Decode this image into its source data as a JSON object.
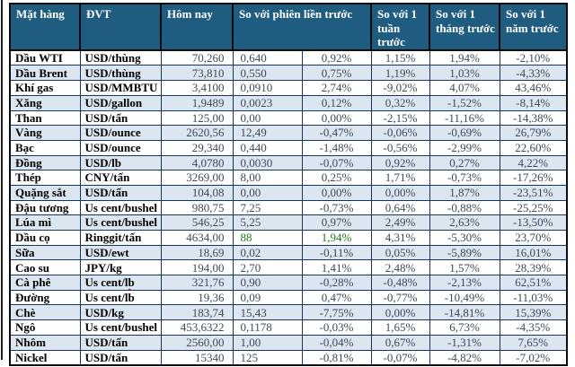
{
  "colors": {
    "header_bg": "#1f5c7f",
    "header_text": "#ffffff",
    "alt_row_bg": "#dce6f1",
    "inner_border": "#17365d",
    "outer_border": "#0c0c0c",
    "label_text": "#000000",
    "number_text": "#3e4a57",
    "positive_green": "#1f7a1f",
    "spellcheck_red": "#e01010"
  },
  "header": {
    "product": "Mặt hàng",
    "unit": "ĐVT",
    "today": "Hôm nay",
    "vs_prev_session": "So với phiên liền trước",
    "vs_week": "So với 1 tuần trước",
    "vs_month": "So với 1 tháng trước",
    "vs_year": "So với 1 năm trước"
  },
  "rows": [
    {
      "name": "Dầu WTI",
      "unit": "USD/thùng",
      "today": "70,260",
      "change": "0,640",
      "change_pct": "0,92%",
      "week": "1,15%",
      "month": "1,94%",
      "year": "-2,10%"
    },
    {
      "name": "Dầu Brent",
      "unit": "USD/thùng",
      "today": "73,810",
      "change": "0,550",
      "change_pct": "0,75%",
      "week": "1,19%",
      "month": "1,03%",
      "year": "-4,33%"
    },
    {
      "name": "Khí gas",
      "unit": "USD/MMBTU",
      "today": "3,4100",
      "change": "0,0910",
      "change_pct": "2,74%",
      "week": "-9,02%",
      "month": "4,07%",
      "year": "43,46%"
    },
    {
      "name": "Xăng",
      "unit": "USD/gallon",
      "today": "1,9489",
      "change": "0,0023",
      "change_pct": "0,12%",
      "week": "0,32%",
      "month": "-1,52%",
      "year": "-8,14%"
    },
    {
      "name": "Than",
      "unit": "USD/tấn",
      "today": "125,00",
      "change": "0,00",
      "change_pct": "0,00%",
      "week": "-2,15%",
      "month": "-11,16%",
      "year": "-14,38%"
    },
    {
      "name": "Vàng",
      "unit": "USD/ounce",
      "today": "2620,56",
      "change": "12,49",
      "change_pct": "-0,47%",
      "week": "-0,06%",
      "month": "-0,69%",
      "year": "26,79%"
    },
    {
      "name": "Bạc",
      "unit": "USD/ounce",
      "today": "29,340",
      "change": "0,440",
      "change_pct": "-1,48%",
      "week": "-0,56%",
      "month": "-2,99%",
      "year": "22,60%"
    },
    {
      "name": "Đồng",
      "unit": "USD/lb",
      "unit_flag": "lb",
      "today": "4,0780",
      "change": "0,0030",
      "change_pct": "-0,07%",
      "week": "0,92%",
      "month": "0,27%",
      "year": "4,22%"
    },
    {
      "name": "Thép",
      "unit": "CNY/tấn",
      "today": "3269,00",
      "change": "8,00",
      "change_pct": "0,25%",
      "week": "1,71%",
      "month": "-0,73%",
      "year": "-17,26%"
    },
    {
      "name": "Quặng sắt",
      "unit": "USD/tấn",
      "today": "104,08",
      "change": "0,00",
      "change_pct": "0,00%",
      "week": "0,00%",
      "month": "1,87%",
      "year": "-23,51%"
    },
    {
      "name": "Đậu tương",
      "unit": "Us cent/bushel",
      "today": "980,75",
      "change": "7,25",
      "change_pct": "-0,73%",
      "week": "0,64%",
      "month": "-0,88%",
      "year": "-25,25%"
    },
    {
      "name": "Lúa mì",
      "unit": "Us cent/bushel",
      "today": "546,25",
      "change": "5,25",
      "change_pct": "0,97%",
      "week": "2,49%",
      "month": "2,63%",
      "year": "-13,50%"
    },
    {
      "name": "Dầu cọ",
      "unit": "Ringgit/tấn",
      "today": "4634,00",
      "change": "88",
      "change_pct": "1,94%",
      "week": "4,31%",
      "month": "-5,30%",
      "year": "23,70%",
      "green": true
    },
    {
      "name": "Sữa",
      "unit": "USD/ewt",
      "unit_flag": "ewt",
      "today": "18,69",
      "change": "0,02",
      "change_pct": "-0,11%",
      "week": "0,05%",
      "month": "-5,89%",
      "year": "16,01%"
    },
    {
      "name": "Cao su",
      "unit": "JPY/kg",
      "today": "194,00",
      "change": "2,70",
      "change_pct": "1,41%",
      "week": "2,48%",
      "month": "1,57%",
      "year": "28,39%"
    },
    {
      "name": "Cà phê",
      "unit": "Us cent/lb",
      "unit_flag": "lb",
      "today": "321,76",
      "change": "0,90",
      "change_pct": "-0,28%",
      "week": "-0,48%",
      "month": "-2,13%",
      "year": "62,51%"
    },
    {
      "name": "Đường",
      "unit": "Us cent/lb",
      "unit_flag": "lb",
      "today": "19,36",
      "change": "0,09",
      "change_pct": "0,47%",
      "week": "-0,77%",
      "month": "-10,49%",
      "year": "-11,03%"
    },
    {
      "name": "Chè",
      "unit": "USD/kg",
      "today": "183,74",
      "change": "15,43",
      "change_pct": "-7,75%",
      "week": "0,00%",
      "month": "-14,81%",
      "year": "15,39%"
    },
    {
      "name": "Ngô",
      "unit": "Us cent/bushel",
      "today": "453,6322",
      "change": "0,1178",
      "change_pct": "-0,03%",
      "week": "1,65%",
      "month": "6,73%",
      "year": "-4,35%"
    },
    {
      "name": "Nhôm",
      "unit": "USD/tấn",
      "today": "2560,00",
      "change": "1,00",
      "change_pct": "-0,04%",
      "week": "0,67%",
      "month": "-1,31%",
      "year": "7,65%"
    },
    {
      "name": "Nickel",
      "unit": "USD/tấn",
      "today": "15340",
      "change": "125",
      "change_pct": "-0,81%",
      "week": "-0,07%",
      "month": "-4,82%",
      "year": "-7,02%"
    }
  ]
}
